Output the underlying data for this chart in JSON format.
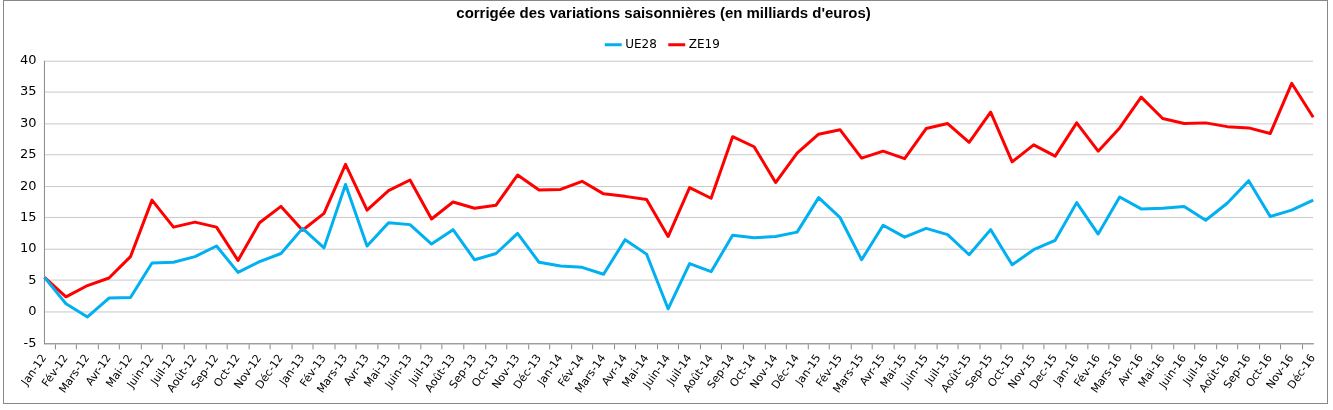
{
  "chart_data": {
    "type": "line",
    "title": "corrigée des variations saisonnières (en milliards d'euros)",
    "categories": [
      "Jan-12",
      "Fév-12",
      "Mars-12",
      "Avr-12",
      "Mai-12",
      "Juin-12",
      "Juil-12",
      "Août-12",
      "Sep-12",
      "Oct-12",
      "Nov-12",
      "Déc-12",
      "Jan-13",
      "Fév-13",
      "Mars-13",
      "Avr-13",
      "Mai-13",
      "Juin-13",
      "Juil-13",
      "Août-13",
      "Sep-13",
      "Oct-13",
      "Nov-13",
      "Déc-13",
      "Jan-14",
      "Fév-14",
      "Mars-14",
      "Avr-14",
      "Mai-14",
      "Juin-14",
      "Juil-14",
      "Août-14",
      "Sep-14",
      "Oct-14",
      "Nov-14",
      "Déc-14",
      "Jan-15",
      "Fév-15",
      "Mars-15",
      "Avr-15",
      "Mai-15",
      "Juin-15",
      "Juil-15",
      "Août-15",
      "Sep-15",
      "Oct-15",
      "Nov-15",
      "Dec-15",
      "Jan-16",
      "Fév-16",
      "Mars-16",
      "Avr-16",
      "Mai-16",
      "Juin-16",
      "Juil-16",
      "Août-16",
      "Sep-16",
      "Oct-16",
      "Nov-16",
      "Déc-16"
    ],
    "series": [
      {
        "name": "UE28",
        "color": "#00b0f0",
        "values": [
          5.5,
          1.3,
          -0.8,
          2.2,
          2.3,
          7.8,
          7.9,
          8.8,
          10.5,
          6.3,
          8.0,
          9.3,
          13.3,
          10.2,
          20.3,
          10.5,
          14.2,
          13.9,
          10.8,
          13.1,
          8.3,
          9.3,
          12.5,
          7.9,
          7.3,
          7.1,
          6.0,
          11.5,
          9.2,
          0.5,
          7.7,
          6.4,
          12.2,
          11.8,
          12.0,
          12.7,
          18.2,
          15.0,
          8.3,
          13.8,
          11.9,
          13.3,
          12.3,
          9.1,
          13.1,
          7.5,
          9.9,
          11.4,
          17.4,
          12.4,
          18.3,
          16.4,
          16.5,
          16.8,
          14.6,
          17.3,
          20.9,
          15.2,
          16.2,
          17.8
        ]
      },
      {
        "name": "ZE19",
        "color": "#ff0000",
        "values": [
          5.5,
          2.4,
          4.2,
          5.4,
          8.8,
          17.8,
          13.5,
          14.3,
          13.5,
          8.2,
          14.2,
          16.8,
          13.0,
          15.7,
          23.5,
          16.2,
          19.3,
          21.0,
          14.8,
          17.5,
          16.5,
          17.0,
          21.8,
          19.4,
          19.5,
          20.8,
          18.8,
          18.4,
          17.9,
          12.0,
          19.8,
          18.1,
          27.9,
          26.3,
          20.6,
          25.3,
          28.3,
          29.0,
          24.5,
          25.6,
          24.4,
          29.2,
          30.0,
          27.0,
          31.8,
          23.9,
          26.6,
          24.8,
          30.1,
          25.6,
          29.3,
          34.2,
          30.8,
          30.0,
          30.1,
          29.5,
          29.3,
          28.4,
          36.4,
          31.0
        ]
      }
    ],
    "ylim": [
      -5,
      40
    ],
    "yticks": [
      -5,
      0,
      5,
      10,
      15,
      20,
      25,
      30,
      35,
      40
    ],
    "grid": "y",
    "legend": "top",
    "marker": "none",
    "line_style": "solid"
  }
}
